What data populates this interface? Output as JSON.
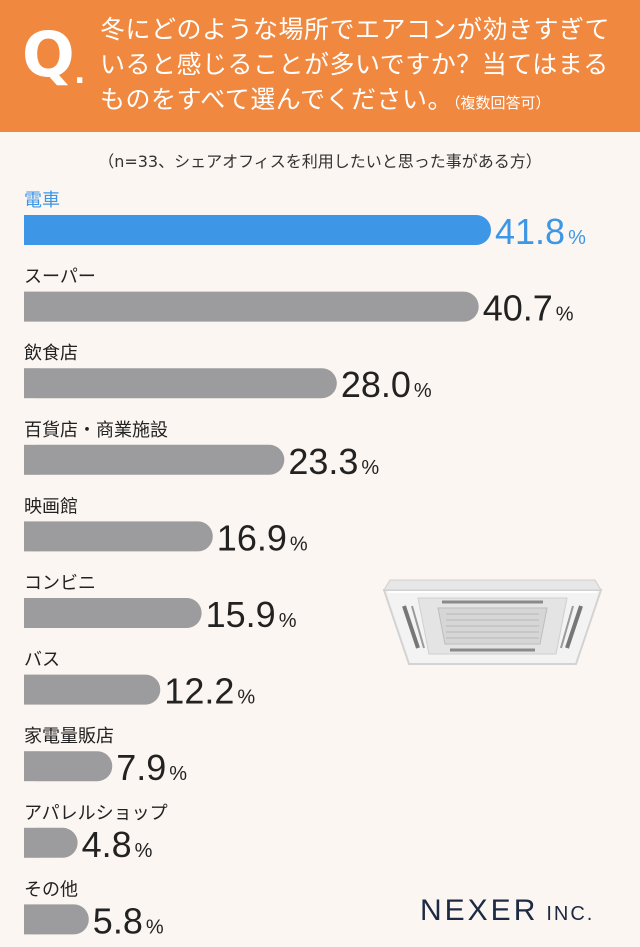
{
  "header": {
    "q_mark": "Q",
    "q_dot": ".",
    "question_line1": "冬にどのような場所でエアコンが効きすぎて",
    "question_line2": "いると感じることが多いですか？当てはまる",
    "question_line3": "ものをすべて選んでください。",
    "question_note": "（複数回答可）"
  },
  "sample_note": "（n=33、シェアオフィスを利用したいと思った事がある方）",
  "colors": {
    "header_bg": "#f0883f",
    "highlight": "#3d96e6",
    "bar": "#9c9c9e",
    "text": "#222222"
  },
  "icon": "ceiling-air-conditioner-icon",
  "logo": {
    "main": "NEXER",
    "sub": "INC."
  },
  "chart_data": {
    "type": "bar",
    "orientation": "horizontal",
    "unit": "%",
    "categories": [
      "電車",
      "スーパー",
      "飲食店",
      "百貨店・商業施設",
      "映画館",
      "コンビニ",
      "バス",
      "家電量販店",
      "アパレルショップ",
      "その他"
    ],
    "values": [
      41.8,
      40.7,
      28.0,
      23.3,
      16.9,
      15.9,
      12.2,
      7.9,
      4.8,
      5.8
    ],
    "value_labels": [
      "41.8",
      "40.7",
      "28.0",
      "23.3",
      "16.9",
      "15.9",
      "12.2",
      "7.9",
      "4.8",
      "5.8"
    ],
    "highlight_index": 0
  }
}
